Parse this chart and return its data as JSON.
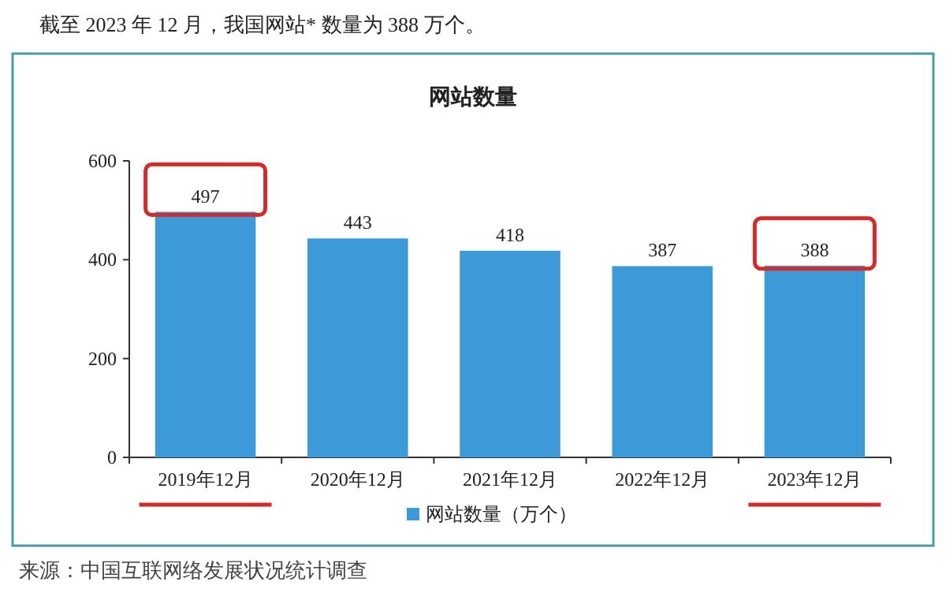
{
  "chart_data": {
    "type": "bar",
    "title": "网站数量",
    "categories": [
      "2019年12月",
      "2020年12月",
      "2021年12月",
      "2022年12月",
      "2023年12月"
    ],
    "series": [
      {
        "name": "网站数量（万个）",
        "color": "#3d9ad8",
        "values": [
          497,
          443,
          418,
          387,
          388
        ]
      }
    ],
    "ylim": [
      0,
      600
    ],
    "yticks": [
      0,
      200,
      400,
      600
    ],
    "data_labels": true,
    "legend": "bottom",
    "grid": false,
    "annotations": [
      "截至 2023 年 12 月，我国网站* 数量为 388 万个。",
      "来源：中国互联网络发展状况统计调查"
    ]
  }
}
